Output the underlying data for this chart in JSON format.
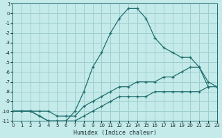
{
  "xlabel": "Humidex (Indice chaleur)",
  "bg_color": "#c5eaea",
  "grid_color": "#9ecece",
  "line_color": "#1e6e6e",
  "xlim": [
    0,
    23
  ],
  "ylim": [
    -11,
    1
  ],
  "series1_x": [
    0,
    1,
    2,
    3,
    4,
    5,
    6,
    7,
    8,
    9,
    10,
    11,
    12,
    13,
    14,
    15,
    16,
    17,
    18,
    19,
    20,
    21,
    22,
    23
  ],
  "series1_y": [
    -10.0,
    -10.0,
    -10.0,
    -10.5,
    -11.0,
    -11.0,
    -11.0,
    -11.0,
    -10.5,
    -10.0,
    -9.5,
    -9.0,
    -8.5,
    -8.5,
    -8.5,
    -8.5,
    -8.0,
    -8.0,
    -8.0,
    -8.0,
    -8.0,
    -8.0,
    -7.5,
    -7.5
  ],
  "series2_x": [
    0,
    1,
    2,
    3,
    4,
    5,
    6,
    7,
    8,
    9,
    10,
    11,
    12,
    13,
    14,
    15,
    16,
    17,
    18,
    19,
    20,
    21,
    22,
    23
  ],
  "series2_y": [
    -10.0,
    -10.0,
    -10.0,
    -10.0,
    -10.0,
    -10.5,
    -10.5,
    -10.5,
    -9.5,
    -9.0,
    -8.5,
    -8.0,
    -7.5,
    -7.5,
    -7.0,
    -7.0,
    -7.0,
    -6.5,
    -6.5,
    -6.0,
    -5.5,
    -5.5,
    -7.0,
    -7.5
  ],
  "series3_x": [
    0,
    1,
    2,
    3,
    4,
    5,
    6,
    7,
    8,
    9,
    10,
    11,
    12,
    13,
    14,
    15,
    16,
    17,
    18,
    19,
    20,
    21,
    22
  ],
  "series3_y": [
    -10.0,
    -10.0,
    -10.0,
    -10.5,
    -11.0,
    -11.0,
    -11.0,
    -10.0,
    -8.0,
    -5.5,
    -4.0,
    -2.0,
    -0.5,
    0.5,
    0.5,
    -0.5,
    -2.5,
    -3.5,
    -4.0,
    -4.5,
    -4.5,
    -5.5,
    -7.5
  ]
}
